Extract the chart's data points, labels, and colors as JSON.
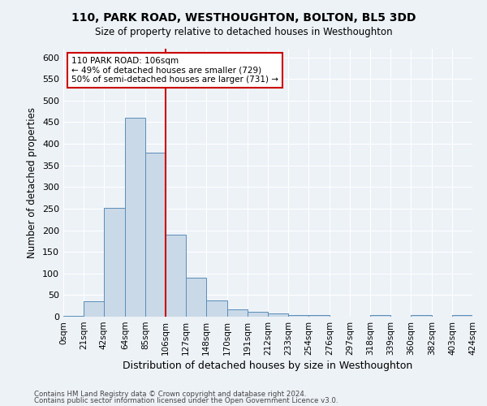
{
  "title1": "110, PARK ROAD, WESTHOUGHTON, BOLTON, BL5 3DD",
  "title2": "Size of property relative to detached houses in Westhoughton",
  "xlabel": "Distribution of detached houses by size in Westhoughton",
  "ylabel": "Number of detached properties",
  "annotation_line1": "110 PARK ROAD: 106sqm",
  "annotation_line2": "← 49% of detached houses are smaller (729)",
  "annotation_line3": "50% of semi-detached houses are larger (731) →",
  "footer1": "Contains HM Land Registry data © Crown copyright and database right 2024.",
  "footer2": "Contains public sector information licensed under the Open Government Licence v3.0.",
  "bar_color": "#c9d9e8",
  "bar_edge_color": "#5b8db8",
  "vline_color": "#cc0000",
  "vline_x": 106,
  "bin_edges": [
    0,
    21,
    42,
    64,
    85,
    106,
    127,
    148,
    170,
    191,
    212,
    233,
    254,
    276,
    297,
    318,
    339,
    360,
    382,
    403,
    424
  ],
  "bin_labels": [
    "0sqm",
    "21sqm",
    "42sqm",
    "64sqm",
    "85sqm",
    "106sqm",
    "127sqm",
    "148sqm",
    "170sqm",
    "191sqm",
    "212sqm",
    "233sqm",
    "254sqm",
    "276sqm",
    "297sqm",
    "318sqm",
    "339sqm",
    "360sqm",
    "382sqm",
    "403sqm",
    "424sqm"
  ],
  "bar_heights": [
    2,
    35,
    252,
    460,
    380,
    190,
    90,
    37,
    17,
    12,
    7,
    4,
    4,
    0,
    0,
    4,
    0,
    3,
    0,
    4
  ],
  "ylim": [
    0,
    620
  ],
  "yticks": [
    0,
    50,
    100,
    150,
    200,
    250,
    300,
    350,
    400,
    450,
    500,
    550,
    600
  ],
  "bg_color": "#edf2f7",
  "plot_bg_color": "#edf2f7",
  "grid_color": "#ffffff",
  "annotation_box_color": "#ffffff",
  "annotation_box_edge": "#cc0000"
}
